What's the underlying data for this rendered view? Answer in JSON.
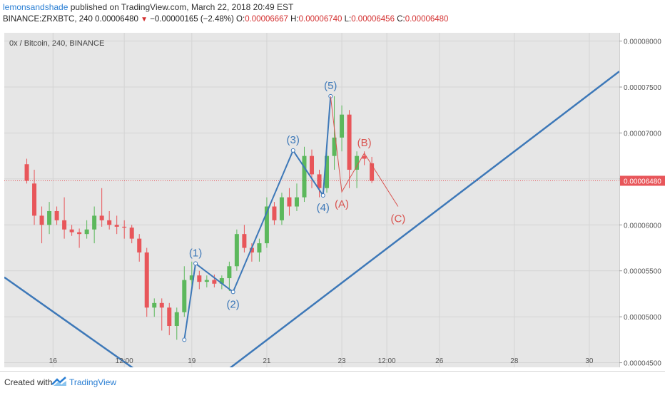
{
  "header": {
    "user": "lemonsandshade",
    "published": " published on TradingView.com, March 22, 2018 20:49 EST",
    "symbol": "BINANCE:ZRXBTC, 240",
    "last": "0.00006480",
    "change": "−0.00000165 (−2.48%)",
    "o_label": "O:",
    "o": "0.00006667",
    "h_label": "H:",
    "h": "0.00006740",
    "l_label": "L:",
    "l": "0.00006456",
    "c_label": "C:",
    "c": "0.00006480"
  },
  "panel_title": "0x / Bitcoin, 240, BINANCE",
  "footer": {
    "created": "Created with",
    "brand": "TradingView"
  },
  "colors": {
    "up": "#5cb85c",
    "down": "#e8565a",
    "wave": "#3d78b8",
    "corr": "#d9534f",
    "bg": "#e6e6e6"
  },
  "chart_data": {
    "type": "candlestick",
    "ylim": [
      4.45e-05,
      8.09e-05
    ],
    "xlim": [
      -3,
      79
    ],
    "y_ticks": [
      "0.00008000",
      "0.00007500",
      "0.00007000",
      "0.00006500",
      "0.00006000",
      "0.00005500",
      "0.00005000",
      "0.00004500"
    ],
    "y_tick_values": [
      8e-05,
      7.5e-05,
      7e-05,
      6.5e-05,
      6e-05,
      5.5e-05,
      5e-05,
      4.5e-05
    ],
    "last_price_label": "0.00006480",
    "last_price": 6.48e-05,
    "x_ticks": [
      {
        "label": "16",
        "i": 3.5
      },
      {
        "label": "12:00",
        "i": 13
      },
      {
        "label": "19",
        "i": 22
      },
      {
        "label": "21",
        "i": 32
      },
      {
        "label": "23",
        "i": 42
      },
      {
        "label": "12:00",
        "i": 48
      },
      {
        "label": "26",
        "i": 55
      },
      {
        "label": "28",
        "i": 65
      },
      {
        "label": "30",
        "i": 75
      }
    ],
    "candles": [
      {
        "o": 6.66,
        "h": 6.72,
        "l": 6.45,
        "c": 6.48
      },
      {
        "o": 6.45,
        "h": 6.6,
        "l": 6.0,
        "c": 6.1
      },
      {
        "o": 6.1,
        "h": 6.2,
        "l": 5.8,
        "c": 6.0
      },
      {
        "o": 6.0,
        "h": 6.25,
        "l": 5.9,
        "c": 6.15
      },
      {
        "o": 6.15,
        "h": 6.2,
        "l": 6.0,
        "c": 6.05
      },
      {
        "o": 6.05,
        "h": 6.3,
        "l": 5.85,
        "c": 5.95
      },
      {
        "o": 5.95,
        "h": 6.0,
        "l": 5.88,
        "c": 5.92
      },
      {
        "o": 5.92,
        "h": 5.96,
        "l": 5.75,
        "c": 5.9
      },
      {
        "o": 5.9,
        "h": 6.05,
        "l": 5.85,
        "c": 5.95
      },
      {
        "o": 5.95,
        "h": 6.2,
        "l": 5.8,
        "c": 6.1
      },
      {
        "o": 6.1,
        "h": 6.4,
        "l": 5.98,
        "c": 6.05
      },
      {
        "o": 6.05,
        "h": 6.15,
        "l": 5.95,
        "c": 6.0
      },
      {
        "o": 6.0,
        "h": 6.1,
        "l": 5.9,
        "c": 5.98
      },
      {
        "o": 5.98,
        "h": 6.05,
        "l": 5.85,
        "c": 5.97
      },
      {
        "o": 5.97,
        "h": 6.0,
        "l": 5.8,
        "c": 5.85
      },
      {
        "o": 5.85,
        "h": 5.9,
        "l": 5.6,
        "c": 5.7
      },
      {
        "o": 5.7,
        "h": 5.75,
        "l": 5.0,
        "c": 5.1
      },
      {
        "o": 5.1,
        "h": 5.2,
        "l": 5.0,
        "c": 5.15
      },
      {
        "o": 5.15,
        "h": 5.2,
        "l": 4.85,
        "c": 5.1
      },
      {
        "o": 5.1,
        "h": 5.15,
        "l": 4.8,
        "c": 4.9
      },
      {
        "o": 4.9,
        "h": 5.1,
        "l": 4.75,
        "c": 5.05
      },
      {
        "o": 5.05,
        "h": 5.55,
        "l": 5.0,
        "c": 5.4
      },
      {
        "o": 5.4,
        "h": 5.6,
        "l": 5.3,
        "c": 5.45
      },
      {
        "o": 5.45,
        "h": 5.5,
        "l": 5.3,
        "c": 5.38
      },
      {
        "o": 5.38,
        "h": 5.45,
        "l": 5.32,
        "c": 5.4
      },
      {
        "o": 5.4,
        "h": 5.46,
        "l": 5.32,
        "c": 5.36
      },
      {
        "o": 5.36,
        "h": 5.45,
        "l": 5.3,
        "c": 5.42
      },
      {
        "o": 5.42,
        "h": 5.6,
        "l": 5.28,
        "c": 5.55
      },
      {
        "o": 5.55,
        "h": 5.95,
        "l": 5.5,
        "c": 5.9
      },
      {
        "o": 5.9,
        "h": 6.0,
        "l": 5.7,
        "c": 5.75
      },
      {
        "o": 5.75,
        "h": 5.8,
        "l": 5.6,
        "c": 5.7
      },
      {
        "o": 5.7,
        "h": 5.85,
        "l": 5.6,
        "c": 5.8
      },
      {
        "o": 5.8,
        "h": 6.3,
        "l": 5.75,
        "c": 6.2
      },
      {
        "o": 6.2,
        "h": 6.25,
        "l": 6.0,
        "c": 6.05
      },
      {
        "o": 6.05,
        "h": 6.35,
        "l": 6.0,
        "c": 6.3
      },
      {
        "o": 6.3,
        "h": 6.4,
        "l": 6.1,
        "c": 6.2
      },
      {
        "o": 6.2,
        "h": 6.45,
        "l": 6.15,
        "c": 6.3
      },
      {
        "o": 6.3,
        "h": 6.85,
        "l": 6.25,
        "c": 6.75
      },
      {
        "o": 6.75,
        "h": 6.82,
        "l": 6.4,
        "c": 6.55
      },
      {
        "o": 6.55,
        "h": 6.6,
        "l": 6.3,
        "c": 6.4
      },
      {
        "o": 6.4,
        "h": 6.85,
        "l": 6.35,
        "c": 6.75
      },
      {
        "o": 6.75,
        "h": 7.4,
        "l": 6.6,
        "c": 6.95
      },
      {
        "o": 6.95,
        "h": 7.3,
        "l": 6.8,
        "c": 7.2
      },
      {
        "o": 7.2,
        "h": 7.25,
        "l": 6.4,
        "c": 6.6
      },
      {
        "o": 6.6,
        "h": 6.8,
        "l": 6.4,
        "c": 6.75
      },
      {
        "o": 6.75,
        "h": 6.8,
        "l": 6.65,
        "c": 6.72
      },
      {
        "o": 6.67,
        "h": 6.74,
        "l": 6.456,
        "c": 6.48
      }
    ],
    "impulse_wave": [
      {
        "i": 21,
        "v": 4.75,
        "label": ""
      },
      {
        "i": 22.5,
        "v": 5.58,
        "label": "(1)"
      },
      {
        "i": 27.5,
        "v": 5.27,
        "label": "(2)"
      },
      {
        "i": 35.5,
        "v": 6.81,
        "label": "(3)"
      },
      {
        "i": 39.5,
        "v": 6.32,
        "label": "(4)"
      },
      {
        "i": 40.5,
        "v": 7.4,
        "label": "(5)"
      }
    ],
    "correction_wave": [
      {
        "i": 40.5,
        "v": 7.4,
        "label": ""
      },
      {
        "i": 42,
        "v": 6.36,
        "label": "(A)"
      },
      {
        "i": 45,
        "v": 6.78,
        "label": "(B)"
      },
      {
        "i": 49.5,
        "v": 6.2,
        "label": "(C)"
      }
    ],
    "trend_lines": [
      {
        "x1": -3,
        "v1": 5.43,
        "x2": 17.5,
        "v2": 4.25
      },
      {
        "x1": 24,
        "v1": 4.25,
        "x2": 79,
        "v2": 7.67
      }
    ]
  }
}
